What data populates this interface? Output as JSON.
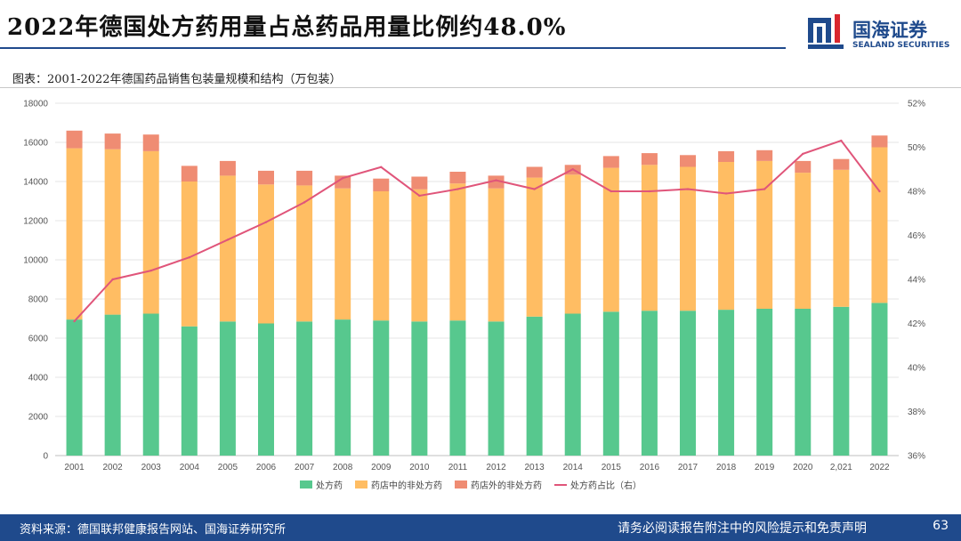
{
  "header": {
    "title": "2022年德国处方药用量占总药品用量比例约48.0%",
    "logo_name": "国海证券",
    "logo_sub": "SEALAND SECURITIES"
  },
  "figure": {
    "caption": "图表：2001-2022年德国药品销售包装量规模和结构（万包装）"
  },
  "footer": {
    "source": "资料来源：德国联邦健康报告网站、国海证券研究所",
    "disclaimer": "请务必阅读报告附注中的风险提示和免责声明",
    "page": "63"
  },
  "colors": {
    "brand": "#1f4a8c",
    "rx": "#57c88e",
    "otc_in": "#ffbd63",
    "otc_out": "#ef8c73",
    "ratio": "#e0557a"
  },
  "chart_data": {
    "type": "bar",
    "stacked": true,
    "categories": [
      "2001",
      "2002",
      "2003",
      "2004",
      "2005",
      "2006",
      "2007",
      "2008",
      "2009",
      "2010",
      "2011",
      "2012",
      "2013",
      "2014",
      "2015",
      "2016",
      "2017",
      "2018",
      "2019",
      "2020",
      "2,021",
      "2022"
    ],
    "series": [
      {
        "name": "处方药",
        "type": "bar",
        "axis": "left",
        "values": [
          6950,
          7200,
          7250,
          6600,
          6850,
          6750,
          6850,
          6950,
          6900,
          6850,
          6900,
          6850,
          7100,
          7250,
          7350,
          7400,
          7400,
          7450,
          7500,
          7500,
          7600,
          7800
        ]
      },
      {
        "name": "药店中的非处方药",
        "type": "bar",
        "axis": "left",
        "values": [
          8750,
          8450,
          8300,
          7400,
          7450,
          7100,
          6950,
          6700,
          6600,
          6750,
          7000,
          6800,
          7100,
          7100,
          7350,
          7450,
          7350,
          7550,
          7550,
          6950,
          7000,
          7950
        ]
      },
      {
        "name": "药店外的非处方药",
        "type": "bar",
        "axis": "left",
        "values": [
          900,
          800,
          850,
          800,
          750,
          700,
          750,
          650,
          650,
          650,
          600,
          650,
          550,
          500,
          600,
          600,
          600,
          550,
          550,
          600,
          550,
          600
        ]
      },
      {
        "name": "处方药占比（右）",
        "type": "line",
        "axis": "right",
        "values": [
          42.1,
          44.0,
          44.4,
          45.0,
          45.8,
          46.6,
          47.5,
          48.6,
          49.1,
          47.8,
          48.1,
          48.5,
          48.1,
          49.0,
          48.0,
          48.0,
          48.1,
          47.9,
          48.1,
          49.7,
          50.3,
          48.0
        ]
      }
    ],
    "left_axis": {
      "min": 0,
      "max": 18000,
      "ticks": [
        0,
        2000,
        4000,
        6000,
        8000,
        10000,
        12000,
        14000,
        16000,
        18000
      ]
    },
    "right_axis": {
      "min": 36,
      "max": 52,
      "ticks": [
        "36%",
        "38%",
        "40%",
        "42%",
        "44%",
        "46%",
        "48%",
        "50%",
        "52%"
      ]
    },
    "legend_position": "bottom"
  }
}
